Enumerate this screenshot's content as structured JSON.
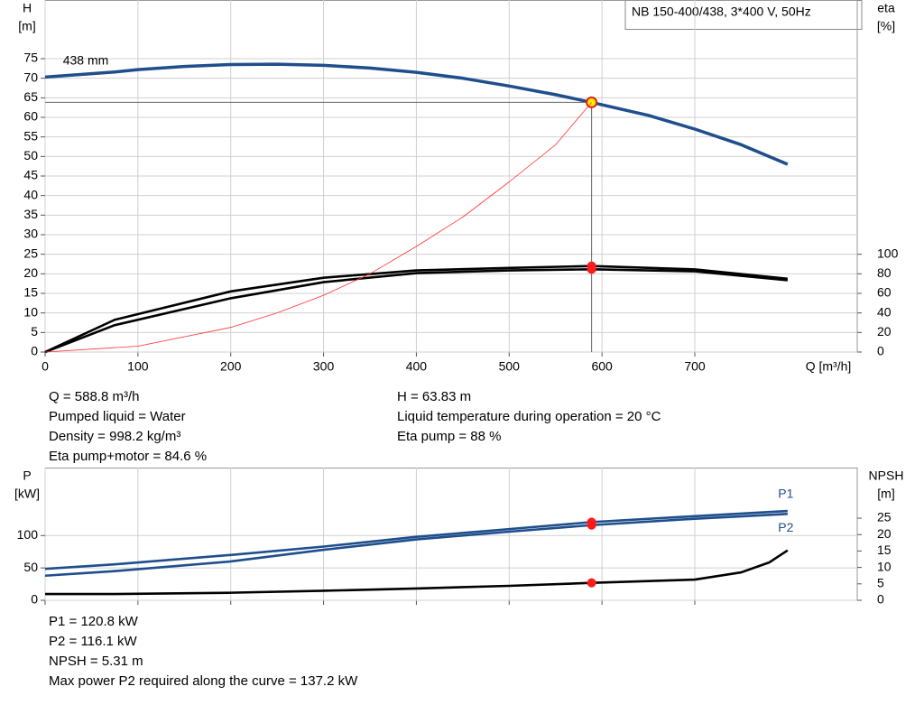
{
  "header": {
    "title": "NB 150-400/438, 3*400 V, 50Hz"
  },
  "chart_data": [
    {
      "type": "line",
      "x_label": "Q [m³/h]",
      "y_label": [
        "H",
        "[m]"
      ],
      "y2_label": [
        "eta",
        "[%]"
      ],
      "curve_label": "438 mm",
      "duty_q": 588.8,
      "xlim": [
        0,
        875
      ],
      "xticks": [
        0,
        100,
        200,
        300,
        400,
        500,
        600,
        700
      ],
      "ylim": [
        0,
        90
      ],
      "yticks": [
        0,
        5,
        10,
        15,
        20,
        25,
        30,
        35,
        40,
        45,
        50,
        55,
        60,
        65,
        70,
        75
      ],
      "y2lim": [
        0,
        360
      ],
      "y2ticks": [
        0,
        20,
        40,
        60,
        80,
        100
      ],
      "grid": true,
      "series": [
        {
          "name": "438 mm",
          "color": "#1f4e8c",
          "x": [
            0,
            75,
            100,
            150,
            200,
            250,
            300,
            350,
            400,
            450,
            500,
            550,
            588.8,
            650,
            700,
            750,
            800
          ],
          "values": [
            70.3,
            71.6,
            72.2,
            73,
            73.5,
            73.6,
            73.3,
            72.6,
            71.5,
            70,
            68,
            65.8,
            63.83,
            60.5,
            57,
            53,
            48
          ]
        },
        {
          "color": "#000000",
          "axis": "y2",
          "x": [
            0,
            75,
            200,
            300,
            400,
            500,
            588.8,
            700,
            800
          ],
          "values": [
            0,
            33,
            62,
            76,
            83.5,
            86,
            88,
            84.5,
            75
          ]
        },
        {
          "color": "#000000",
          "axis": "y2",
          "x": [
            0,
            75,
            200,
            300,
            400,
            500,
            588.8,
            700,
            800
          ],
          "values": [
            0,
            27.5,
            55,
            71.5,
            80.7,
            83.5,
            84.6,
            82.5,
            73.4
          ]
        },
        {
          "color": "#ff3030",
          "x": [
            0,
            100,
            200,
            250,
            300,
            350,
            400,
            450,
            500,
            550,
            588.8
          ],
          "values": [
            0,
            1.5,
            6.3,
            10,
            14.5,
            20,
            27,
            34.5,
            43.5,
            53,
            63.83
          ]
        }
      ]
    },
    {
      "type": "line",
      "y_label": [
        "P",
        "[kW]"
      ],
      "y2_label": [
        "NPSH",
        "[m]"
      ],
      "duty_q": 588.8,
      "xlim": [
        0,
        875
      ],
      "xticks": [
        0,
        100,
        200,
        300,
        400,
        500,
        600,
        700
      ],
      "ylim": [
        0,
        205
      ],
      "yticks": [
        0,
        50,
        100
      ],
      "y2lim": [
        0,
        40.4
      ],
      "y2ticks": [
        0,
        5,
        10,
        15,
        20,
        25
      ],
      "grid": true,
      "series": [
        {
          "name": "P1",
          "color": "#1f4e8c",
          "x": [
            0,
            75,
            200,
            300,
            400,
            500,
            588.8,
            700,
            800
          ],
          "values": [
            48.5,
            55.5,
            70,
            83,
            98,
            110,
            120.8,
            130,
            138
          ]
        },
        {
          "name": "P2",
          "color": "#1f4e8c",
          "x": [
            0,
            75,
            200,
            300,
            400,
            500,
            588.8,
            700,
            800
          ],
          "values": [
            38,
            45,
            60,
            78,
            94,
            106,
            116.1,
            126,
            133.5
          ]
        },
        {
          "color": "#000000",
          "axis": "y2",
          "x": [
            0,
            75,
            200,
            300,
            400,
            500,
            588.8,
            700,
            750,
            780,
            800
          ],
          "values": [
            1.9,
            1.9,
            2.3,
            2.9,
            3.6,
            4.4,
            5.31,
            6.3,
            8.5,
            11.5,
            15.2
          ]
        }
      ]
    }
  ],
  "info_top": {
    "left": [
      "Q = 588.8 m³/h",
      "Pumped liquid = Water",
      "Density = 998.2 kg/m³",
      "Eta pump+motor = 84.6 %"
    ],
    "right": [
      "H = 63.83 m",
      "Liquid temperature during operation = 20 °C",
      "Eta pump = 88 %"
    ]
  },
  "info_bottom": [
    "P1 = 120.8 kW",
    "P2 = 116.1 kW",
    "NPSH = 5.31 m",
    "Max power P2 required along the curve = 137.2 kW"
  ]
}
